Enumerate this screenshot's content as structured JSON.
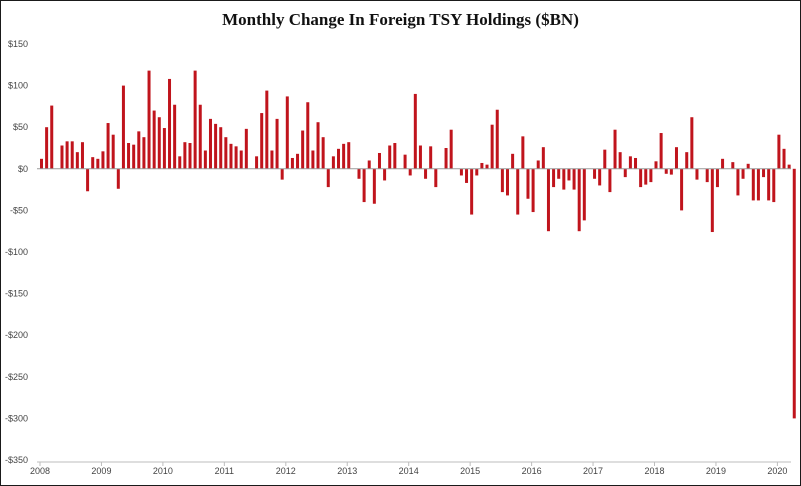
{
  "chart_data": {
    "type": "bar",
    "title": "Monthly Change In Foreign TSY Holdings  ($BN)",
    "xlabel": "",
    "ylabel": "",
    "ylim": [
      -350,
      150
    ],
    "yticks": [
      150,
      100,
      50,
      0,
      -50,
      -100,
      -150,
      -200,
      -250,
      -300,
      -350
    ],
    "ytick_labels": [
      "$150",
      "$100",
      "$50",
      "$0",
      "-$50",
      "-$100",
      "-$150",
      "-$200",
      "-$250",
      "-$300",
      "-$350"
    ],
    "xtick_labels": [
      "2008",
      "2009",
      "2010",
      "2011",
      "2012",
      "2013",
      "2014",
      "2015",
      "2016",
      "2017",
      "2018",
      "2019",
      "2020"
    ],
    "grid": false,
    "legend": "none",
    "bar_color": "#c0141c",
    "start_month": "2008-01",
    "values": [
      12,
      50,
      76,
      0,
      28,
      33,
      33,
      20,
      32,
      -27,
      14,
      12,
      21,
      55,
      41,
      -24,
      100,
      31,
      29,
      45,
      38,
      118,
      70,
      62,
      49,
      108,
      77,
      15,
      32,
      31,
      118,
      77,
      22,
      60,
      54,
      50,
      38,
      30,
      27,
      22,
      48,
      0,
      15,
      67,
      94,
      22,
      60,
      -13,
      87,
      13,
      18,
      46,
      80,
      22,
      56,
      38,
      -22,
      15,
      24,
      30,
      32,
      0,
      -12,
      -40,
      10,
      -42,
      19,
      -14,
      28,
      31,
      0,
      17,
      -8,
      90,
      28,
      -12,
      27,
      -22,
      0,
      25,
      47,
      0,
      -8,
      -17,
      -55,
      -8,
      7,
      5,
      53,
      71,
      -28,
      -32,
      18,
      -55,
      39,
      -36,
      -52,
      10,
      26,
      -75,
      -22,
      -12,
      -25,
      -14,
      -25,
      -75,
      -62,
      0,
      -12,
      -20,
      23,
      -28,
      47,
      20,
      -10,
      15,
      13,
      -22,
      -19,
      -16,
      9,
      43,
      -6,
      -7,
      26,
      -50,
      20,
      62,
      -13,
      0,
      -16,
      -76,
      -22,
      12,
      0,
      8,
      -32,
      -12,
      6,
      -38,
      -38,
      -10,
      -38,
      -40,
      41,
      24,
      5,
      -300
    ]
  }
}
